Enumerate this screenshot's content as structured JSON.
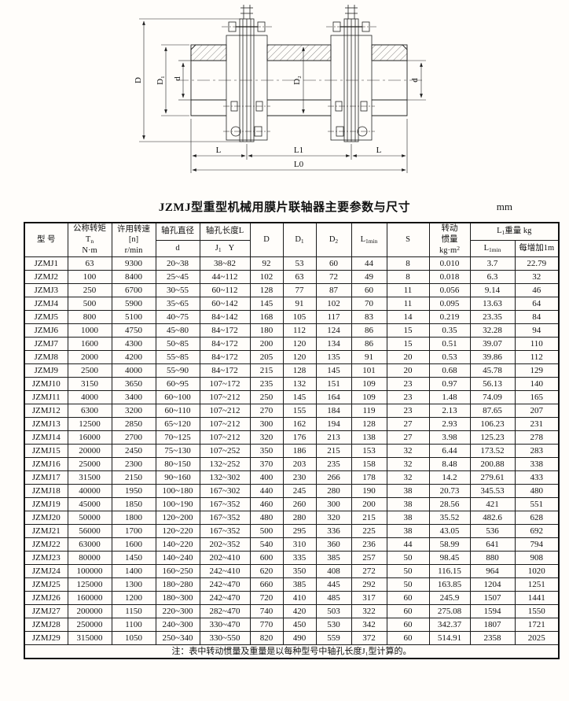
{
  "page": {
    "title": "JZMJ型重型机械用膜片联轴器主要参数与尺寸",
    "unit": "mm",
    "note": "注：表中转动惯量及重量是以每种型号中轴孔长度J₁型计算的。"
  },
  "drawing": {
    "labels": {
      "D": "D",
      "D1": "D₁",
      "d_left": "d",
      "D2": "D₂",
      "d_right": "d",
      "L_left": "L",
      "L1": "L1",
      "L_right": "L",
      "L0": "L0"
    }
  },
  "table": {
    "headers": {
      "model": "型 号",
      "torque_l1": "公称转矩",
      "torque_sym": "T",
      "torque_sub": "n",
      "torque_unit": "N·m",
      "speed_l1": "许用转速",
      "speed_l2": "[n]",
      "speed_unit": "r/min",
      "bore_l1": "轴孔直径",
      "bore_sym": "d",
      "len_l1": "轴孔长度L",
      "len_sym": "J",
      "len_sub": "1",
      "len_tail": "Y",
      "D": "D",
      "D1_sym": "D",
      "D1_sub": "1",
      "D2_sym": "D",
      "D2_sub": "2",
      "Lmin_sym": "L",
      "Lmin_sub": "1min",
      "S": "S",
      "inertia_l1": "转动",
      "inertia_l2": "惯量",
      "inertia_unit": "kg·m",
      "inertia_sup": "2",
      "weight_sym": "L",
      "weight_sub": "1",
      "weight_tail": "重量 kg",
      "w1_sym": "L",
      "w1_sub": "1min",
      "w2": "每增加1m"
    },
    "rows": [
      [
        "JZMJ1",
        "63",
        "9300",
        "20~38",
        "38~82",
        "92",
        "53",
        "60",
        "44",
        "8",
        "0.010",
        "3.7",
        "22.79"
      ],
      [
        "JZMJ2",
        "100",
        "8400",
        "25~45",
        "44~112",
        "102",
        "63",
        "72",
        "49",
        "8",
        "0.018",
        "6.3",
        "32"
      ],
      [
        "JZMJ3",
        "250",
        "6700",
        "30~55",
        "60~112",
        "128",
        "77",
        "87",
        "60",
        "11",
        "0.056",
        "9.14",
        "46"
      ],
      [
        "JZMJ4",
        "500",
        "5900",
        "35~65",
        "60~142",
        "145",
        "91",
        "102",
        "70",
        "11",
        "0.095",
        "13.63",
        "64"
      ],
      [
        "JZMJ5",
        "800",
        "5100",
        "40~75",
        "84~142",
        "168",
        "105",
        "117",
        "83",
        "14",
        "0.219",
        "23.35",
        "84"
      ],
      [
        "JZMJ6",
        "1000",
        "4750",
        "45~80",
        "84~172",
        "180",
        "112",
        "124",
        "86",
        "15",
        "0.35",
        "32.28",
        "94"
      ],
      [
        "JZMJ7",
        "1600",
        "4300",
        "50~85",
        "84~172",
        "200",
        "120",
        "134",
        "86",
        "15",
        "0.51",
        "39.07",
        "110"
      ],
      [
        "JZMJ8",
        "2000",
        "4200",
        "55~85",
        "84~172",
        "205",
        "120",
        "135",
        "91",
        "20",
        "0.53",
        "39.86",
        "112"
      ],
      [
        "JZMJ9",
        "2500",
        "4000",
        "55~90",
        "84~172",
        "215",
        "128",
        "145",
        "101",
        "20",
        "0.68",
        "45.78",
        "129"
      ],
      [
        "JZMJ10",
        "3150",
        "3650",
        "60~95",
        "107~172",
        "235",
        "132",
        "151",
        "109",
        "23",
        "0.97",
        "56.13",
        "140"
      ],
      [
        "JZMJ11",
        "4000",
        "3400",
        "60~100",
        "107~212",
        "250",
        "145",
        "164",
        "109",
        "23",
        "1.48",
        "74.09",
        "165"
      ],
      [
        "JZMJ12",
        "6300",
        "3200",
        "60~110",
        "107~212",
        "270",
        "155",
        "184",
        "119",
        "23",
        "2.13",
        "87.65",
        "207"
      ],
      [
        "JZMJ13",
        "12500",
        "2850",
        "65~120",
        "107~212",
        "300",
        "162",
        "194",
        "128",
        "27",
        "2.93",
        "106.23",
        "231"
      ],
      [
        "JZMJ14",
        "16000",
        "2700",
        "70~125",
        "107~212",
        "320",
        "176",
        "213",
        "138",
        "27",
        "3.98",
        "125.23",
        "278"
      ],
      [
        "JZMJ15",
        "20000",
        "2450",
        "75~130",
        "107~252",
        "350",
        "186",
        "215",
        "153",
        "32",
        "6.44",
        "173.52",
        "283"
      ],
      [
        "JZMJ16",
        "25000",
        "2300",
        "80~150",
        "132~252",
        "370",
        "203",
        "235",
        "158",
        "32",
        "8.48",
        "200.88",
        "338"
      ],
      [
        "JZMJ17",
        "31500",
        "2150",
        "90~160",
        "132~302",
        "400",
        "230",
        "266",
        "178",
        "32",
        "14.2",
        "279.61",
        "433"
      ],
      [
        "JZMJ18",
        "40000",
        "1950",
        "100~180",
        "167~302",
        "440",
        "245",
        "280",
        "190",
        "38",
        "20.73",
        "345.53",
        "480"
      ],
      [
        "JZMJ19",
        "45000",
        "1850",
        "100~190",
        "167~352",
        "460",
        "260",
        "300",
        "200",
        "38",
        "28.56",
        "421",
        "551"
      ],
      [
        "JZMJ20",
        "50000",
        "1800",
        "120~200",
        "167~352",
        "480",
        "280",
        "320",
        "215",
        "38",
        "35.52",
        "482.6",
        "628"
      ],
      [
        "JZMJ21",
        "56000",
        "1700",
        "120~220",
        "167~352",
        "500",
        "295",
        "336",
        "225",
        "38",
        "43.05",
        "536",
        "692"
      ],
      [
        "JZMJ22",
        "63000",
        "1600",
        "140~220",
        "202~352",
        "540",
        "310",
        "360",
        "236",
        "44",
        "58.99",
        "641",
        "794"
      ],
      [
        "JZMJ23",
        "80000",
        "1450",
        "140~240",
        "202~410",
        "600",
        "335",
        "385",
        "257",
        "50",
        "98.45",
        "880",
        "908"
      ],
      [
        "JZMJ24",
        "100000",
        "1400",
        "160~250",
        "242~410",
        "620",
        "350",
        "408",
        "272",
        "50",
        "116.15",
        "964",
        "1020"
      ],
      [
        "JZMJ25",
        "125000",
        "1300",
        "180~280",
        "242~470",
        "660",
        "385",
        "445",
        "292",
        "50",
        "163.85",
        "1204",
        "1251"
      ],
      [
        "JZMJ26",
        "160000",
        "1200",
        "180~300",
        "242~470",
        "720",
        "410",
        "485",
        "317",
        "60",
        "245.9",
        "1507",
        "1441"
      ],
      [
        "JZMJ27",
        "200000",
        "1150",
        "220~300",
        "282~470",
        "740",
        "420",
        "503",
        "322",
        "60",
        "275.08",
        "1594",
        "1550"
      ],
      [
        "JZMJ28",
        "250000",
        "1100",
        "240~300",
        "330~470",
        "770",
        "450",
        "530",
        "342",
        "60",
        "342.37",
        "1807",
        "1721"
      ],
      [
        "JZMJ29",
        "315000",
        "1050",
        "250~340",
        "330~550",
        "820",
        "490",
        "559",
        "372",
        "60",
        "514.91",
        "2358",
        "2025"
      ]
    ]
  }
}
